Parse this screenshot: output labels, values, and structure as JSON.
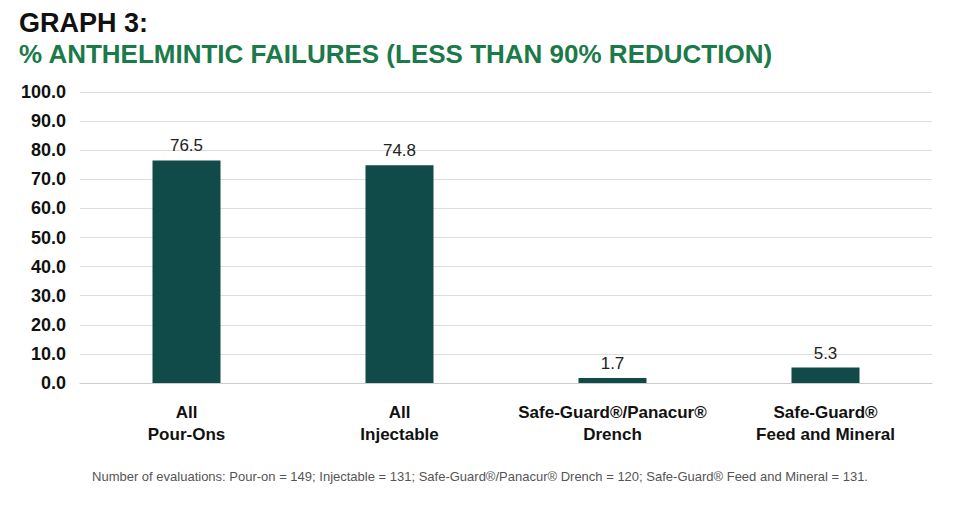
{
  "chart_data": {
    "type": "bar",
    "title": "GRAPH 3:",
    "subtitle": "% ANTHELMINTIC FAILURES (LESS THAN 90% REDUCTION)",
    "categories": [
      "All\nPour-Ons",
      "All\nInjectable",
      "Safe-Guard®/Panacur®\nDrench",
      "Safe-Guard®\nFeed and Mineral"
    ],
    "values": [
      76.5,
      74.8,
      1.7,
      5.3
    ],
    "color": "#114b49",
    "ylim": [
      0,
      100
    ],
    "yticks": [
      {
        "value": 0,
        "label": "0.0"
      },
      {
        "value": 10,
        "label": "10.0"
      },
      {
        "value": 20,
        "label": "20.0"
      },
      {
        "value": 30,
        "label": "30.0"
      },
      {
        "value": 40,
        "label": "40.0"
      },
      {
        "value": 50,
        "label": "50.0"
      },
      {
        "value": 60,
        "label": "60.0"
      },
      {
        "value": 70,
        "label": "70.0"
      },
      {
        "value": 80,
        "label": "80.0"
      },
      {
        "value": 90,
        "label": "90.0"
      },
      {
        "value": 100,
        "label": "100.0"
      }
    ],
    "grid": true,
    "data_labels": true,
    "annotations": [
      "Number of evaluations: Pour-on = 149; Injectable = 131; Safe-Guard®/Panacur® Drench = 120; Safe-Guard® Feed and Mineral = 131."
    ]
  }
}
